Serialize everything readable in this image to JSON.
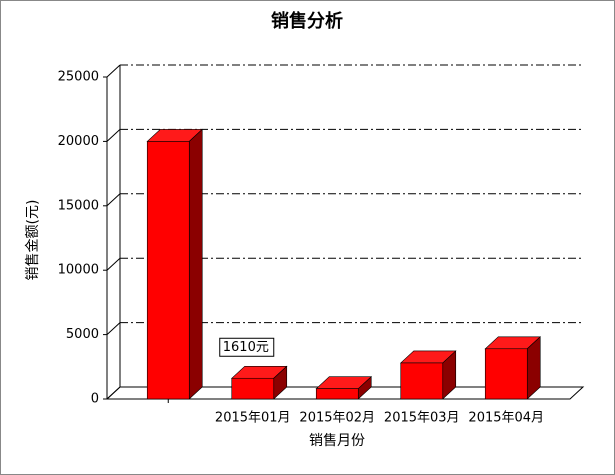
{
  "chart_data": {
    "type": "bar3d",
    "title": "销售分析",
    "x_label": "销售月份",
    "y_label": "销售金额(元)",
    "categories": [
      null,
      "2015年01月",
      "2015年02月",
      "2015年03月",
      "2015年04月"
    ],
    "values": [
      20000,
      1610,
      800,
      2800,
      3900
    ],
    "value_labels": [
      null,
      "1610元",
      null,
      null,
      null
    ],
    "color": "#ff0000",
    "ylim": [
      0,
      25000
    ],
    "yticks": [
      0,
      5000,
      10000,
      15000,
      20000,
      25000
    ],
    "grid": true
  }
}
